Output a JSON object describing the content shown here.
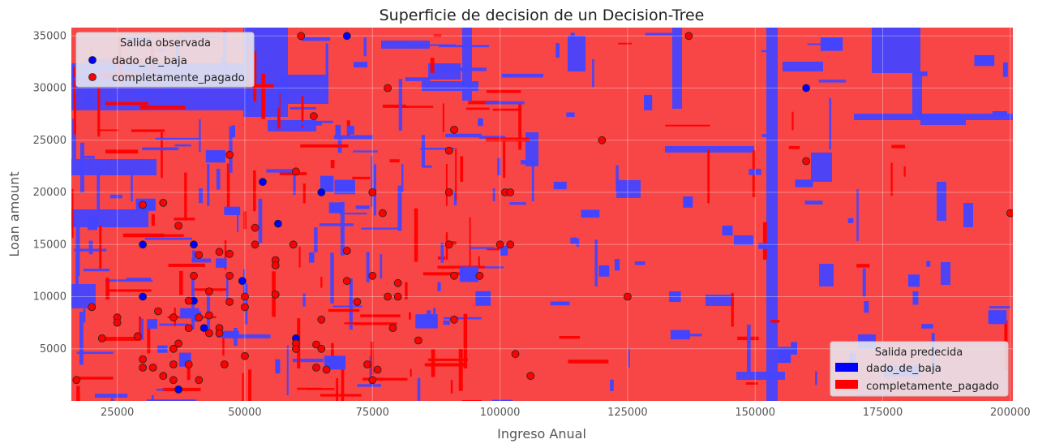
{
  "chart_data": {
    "type": "scatter",
    "title": "Superficie de decision de un Decision-Tree",
    "xlabel": "Ingreso Anual",
    "ylabel": "Loan amount",
    "xlim": [
      16000,
      200500
    ],
    "ylim": [
      0,
      35800
    ],
    "x_ticks": [
      25000,
      50000,
      75000,
      100000,
      125000,
      150000,
      175000,
      200000
    ],
    "x_tick_labels": [
      "25000",
      "50000",
      "75000",
      "100000",
      "125000",
      "150000",
      "175000",
      "200000"
    ],
    "y_ticks": [
      5000,
      10000,
      15000,
      20000,
      25000,
      30000,
      35000
    ],
    "y_tick_labels": [
      "5000",
      "10000",
      "15000",
      "20000",
      "25000",
      "30000",
      "35000"
    ],
    "grid": true,
    "colors": {
      "dado_de_baja": "#0000ff",
      "completamente_pagado": "#ff0000",
      "region_blue": "#4444ff",
      "region_red": "#f84646"
    },
    "legend_observed": {
      "title": "Salida observada",
      "placement": "top-left",
      "entries": [
        "dado_de_baja",
        "completamente_pagado"
      ]
    },
    "legend_predicted": {
      "title": "Salida predecida",
      "placement": "bottom-right",
      "entries": [
        "dado_de_baja",
        "completamente_pagado"
      ]
    },
    "series": [
      {
        "name": "dado_de_baja",
        "points": [
          [
            70000,
            35000
          ],
          [
            160000,
            30000
          ],
          [
            53500,
            21000
          ],
          [
            65000,
            20000
          ],
          [
            56500,
            17000
          ],
          [
            30000,
            15000
          ],
          [
            40000,
            15000
          ],
          [
            49500,
            11500
          ],
          [
            30000,
            10000
          ],
          [
            40000,
            9600
          ],
          [
            42000,
            7000
          ],
          [
            60000,
            6000
          ],
          [
            37000,
            1100
          ]
        ]
      },
      {
        "name": "completamente_pagado",
        "points": [
          [
            61000,
            35000
          ],
          [
            137000,
            35000
          ],
          [
            78000,
            30000
          ],
          [
            160000,
            23000
          ],
          [
            63500,
            27300
          ],
          [
            91000,
            26000
          ],
          [
            120000,
            25000
          ],
          [
            90000,
            24000
          ],
          [
            47000,
            23600
          ],
          [
            60000,
            22000
          ],
          [
            75000,
            20000
          ],
          [
            90000,
            20000
          ],
          [
            101000,
            20000
          ],
          [
            102000,
            20000
          ],
          [
            30000,
            18800
          ],
          [
            34000,
            19000
          ],
          [
            37000,
            16800
          ],
          [
            52000,
            16600
          ],
          [
            77000,
            18000
          ],
          [
            59500,
            15000
          ],
          [
            52000,
            15000
          ],
          [
            90000,
            15000
          ],
          [
            100000,
            15000
          ],
          [
            102000,
            15000
          ],
          [
            41000,
            14000
          ],
          [
            45000,
            14300
          ],
          [
            47000,
            14100
          ],
          [
            70000,
            14400
          ],
          [
            56000,
            13500
          ],
          [
            56000,
            13000
          ],
          [
            40000,
            12000
          ],
          [
            47000,
            12000
          ],
          [
            75000,
            12000
          ],
          [
            91000,
            12000
          ],
          [
            96000,
            12000
          ],
          [
            70000,
            11500
          ],
          [
            80000,
            11300
          ],
          [
            43000,
            10500
          ],
          [
            56000,
            10200
          ],
          [
            50000,
            10000
          ],
          [
            78000,
            10000
          ],
          [
            80000,
            10000
          ],
          [
            125000,
            10000
          ],
          [
            47000,
            9500
          ],
          [
            39000,
            9600
          ],
          [
            72000,
            9500
          ],
          [
            20000,
            9000
          ],
          [
            50000,
            9000
          ],
          [
            33000,
            8600
          ],
          [
            43000,
            8200
          ],
          [
            25000,
            8000
          ],
          [
            36000,
            8000
          ],
          [
            41000,
            8000
          ],
          [
            65000,
            7800
          ],
          [
            91000,
            7800
          ],
          [
            25000,
            7500
          ],
          [
            39000,
            7000
          ],
          [
            45000,
            7000
          ],
          [
            79000,
            7000
          ],
          [
            22000,
            6000
          ],
          [
            29000,
            6200
          ],
          [
            43000,
            6500
          ],
          [
            45000,
            6500
          ],
          [
            37000,
            5500
          ],
          [
            60000,
            5500
          ],
          [
            64000,
            5400
          ],
          [
            36000,
            5000
          ],
          [
            60000,
            5000
          ],
          [
            65000,
            5000
          ],
          [
            84000,
            5800
          ],
          [
            30000,
            4000
          ],
          [
            50000,
            4300
          ],
          [
            103000,
            4500
          ],
          [
            36000,
            3500
          ],
          [
            39000,
            3500
          ],
          [
            46000,
            3500
          ],
          [
            30000,
            3200
          ],
          [
            32000,
            3200
          ],
          [
            64000,
            3200
          ],
          [
            66000,
            3000
          ],
          [
            74000,
            3500
          ],
          [
            76000,
            3000
          ],
          [
            34000,
            2400
          ],
          [
            36000,
            2000
          ],
          [
            41000,
            2000
          ],
          [
            75000,
            2000
          ],
          [
            106000,
            2400
          ],
          [
            17000,
            2000
          ],
          [
            200000,
            18000
          ]
        ]
      }
    ]
  }
}
